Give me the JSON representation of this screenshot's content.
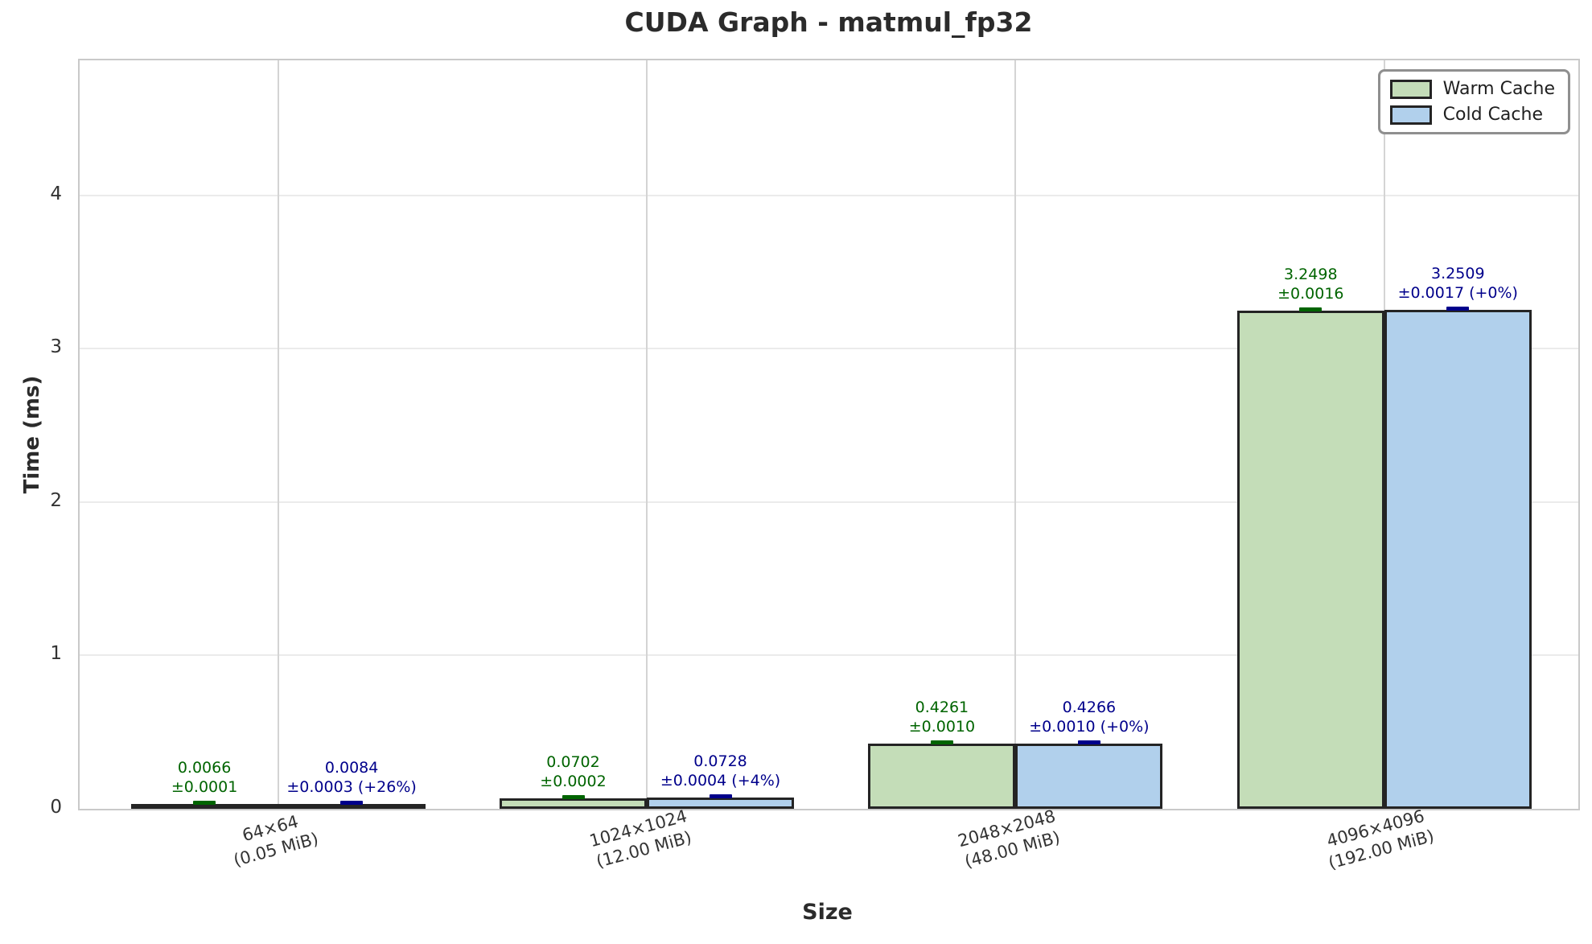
{
  "chart_data": {
    "type": "bar",
    "title": "CUDA Graph - matmul_fp32",
    "xlabel": "Size",
    "ylabel": "Time (ms)",
    "ylim": [
      0,
      4.88
    ],
    "yticks": [
      0,
      1,
      2,
      3,
      4
    ],
    "grid": true,
    "legend_position": "upper right",
    "categories": [
      {
        "line1": "64×64",
        "line2": "(0.05 MiB)"
      },
      {
        "line1": "1024×1024",
        "line2": "(12.00 MiB)"
      },
      {
        "line1": "2048×2048",
        "line2": "(48.00 MiB)"
      },
      {
        "line1": "4096×4096",
        "line2": "(192.00 MiB)"
      }
    ],
    "series": [
      {
        "name": "Warm Cache",
        "color": "#c4ddb8",
        "accent": "#006400",
        "values": [
          0.0066,
          0.0702,
          0.4261,
          3.2498
        ],
        "errors": [
          0.0001,
          0.0002,
          0.001,
          0.0016
        ],
        "value_labels": [
          [
            "0.0066",
            "±0.0001"
          ],
          [
            "0.0702",
            "±0.0002"
          ],
          [
            "0.4261",
            "±0.0010"
          ],
          [
            "3.2498",
            "±0.0016"
          ]
        ]
      },
      {
        "name": "Cold Cache",
        "color": "#b1d0ec",
        "accent": "#00008b",
        "values": [
          0.0084,
          0.0728,
          0.4266,
          3.2509
        ],
        "errors": [
          0.0003,
          0.0004,
          0.001,
          0.0017
        ],
        "value_labels": [
          [
            "0.0084",
            "±0.0003 (+26%)"
          ],
          [
            "0.0728",
            "±0.0004 (+4%)"
          ],
          [
            "0.4266",
            "±0.0010 (+0%)"
          ],
          [
            "3.2509",
            "±0.0017 (+0%)"
          ]
        ]
      }
    ],
    "colors": {
      "bar_edge": "#242424",
      "grid_horizontal": "#ebebeb",
      "grid_vertical": "#d4d4d4",
      "spine": "#c9c9c9",
      "text": "#2b2b2b",
      "tick_text": "#333333"
    }
  }
}
